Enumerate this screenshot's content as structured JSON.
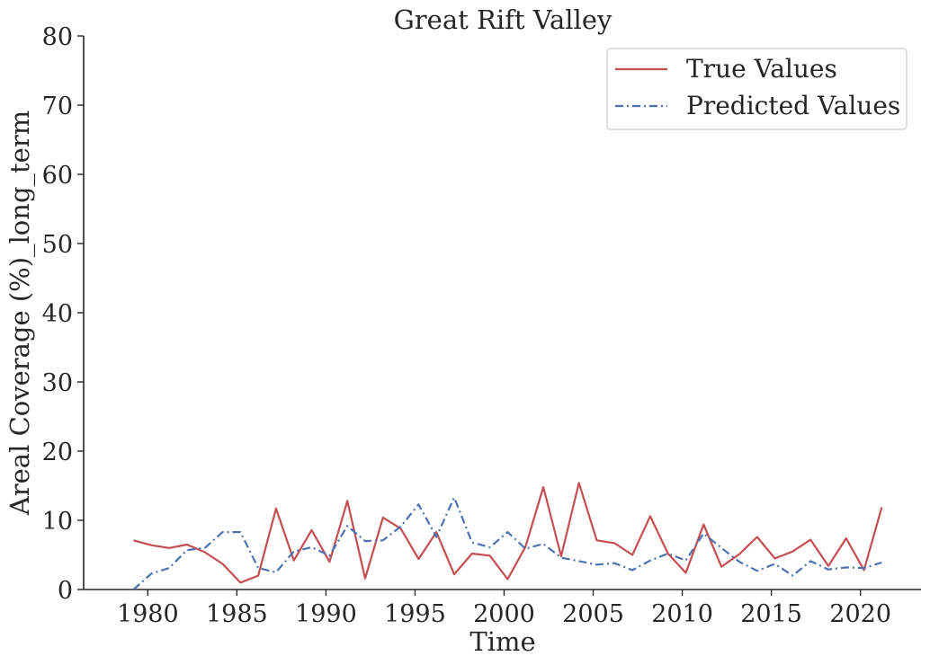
{
  "chart_data": {
    "type": "line",
    "title": "Great Rift Valley",
    "xlabel": "Time",
    "ylabel": "Areal Coverage (%)_long_term",
    "xlim": [
      1976.4,
      2023.4
    ],
    "ylim": [
      0,
      80
    ],
    "xticks": [
      1980,
      1985,
      1990,
      1995,
      2000,
      2005,
      2010,
      2015,
      2020
    ],
    "yticks": [
      0,
      10,
      20,
      30,
      40,
      50,
      60,
      70,
      80
    ],
    "grid": false,
    "legend_position": "top-right",
    "x": [
      1979.2,
      1980.2,
      1981.2,
      1982.2,
      1983.2,
      1984.2,
      1985.2,
      1986.2,
      1987.2,
      1988.2,
      1989.2,
      1990.2,
      1991.2,
      1992.2,
      1993.2,
      1994.2,
      1995.2,
      1996.2,
      1997.2,
      1998.2,
      1999.2,
      2000.2,
      2001.2,
      2002.2,
      2003.2,
      2004.2,
      2005.2,
      2006.2,
      2007.2,
      2008.2,
      2009.2,
      2010.2,
      2011.2,
      2012.2,
      2013.2,
      2014.2,
      2015.2,
      2016.2,
      2017.2,
      2018.2,
      2019.2,
      2020.2,
      2021.2
    ],
    "series": [
      {
        "name": "True Values",
        "color": "#c44e52",
        "dash": "solid",
        "values": [
          7.1,
          6.4,
          6.0,
          6.5,
          5.4,
          3.7,
          1.0,
          2.0,
          11.7,
          4.2,
          8.6,
          4.0,
          12.8,
          1.6,
          10.4,
          8.8,
          4.4,
          8.3,
          2.2,
          5.2,
          4.9,
          1.5,
          6.2,
          14.8,
          4.8,
          15.4,
          7.1,
          6.7,
          5.0,
          10.6,
          5.2,
          2.4,
          9.4,
          3.3,
          5.1,
          7.6,
          4.5,
          5.5,
          7.2,
          3.4,
          7.4,
          2.8,
          11.9
        ]
      },
      {
        "name": "Predicted Values",
        "color": "#4c72b0",
        "dash": "dashdot",
        "values": [
          0.0,
          2.3,
          3.1,
          5.7,
          6.0,
          8.3,
          8.3,
          3.1,
          2.5,
          5.5,
          6.1,
          4.9,
          9.2,
          7.0,
          7.1,
          9.1,
          12.3,
          7.6,
          13.3,
          6.8,
          6.1,
          8.3,
          5.9,
          6.6,
          4.6,
          4.1,
          3.6,
          3.8,
          2.8,
          4.2,
          5.2,
          4.2,
          8.1,
          6.0,
          4.0,
          2.7,
          3.7,
          2.0,
          4.1,
          2.9,
          3.2,
          3.1,
          3.9
        ]
      }
    ]
  }
}
